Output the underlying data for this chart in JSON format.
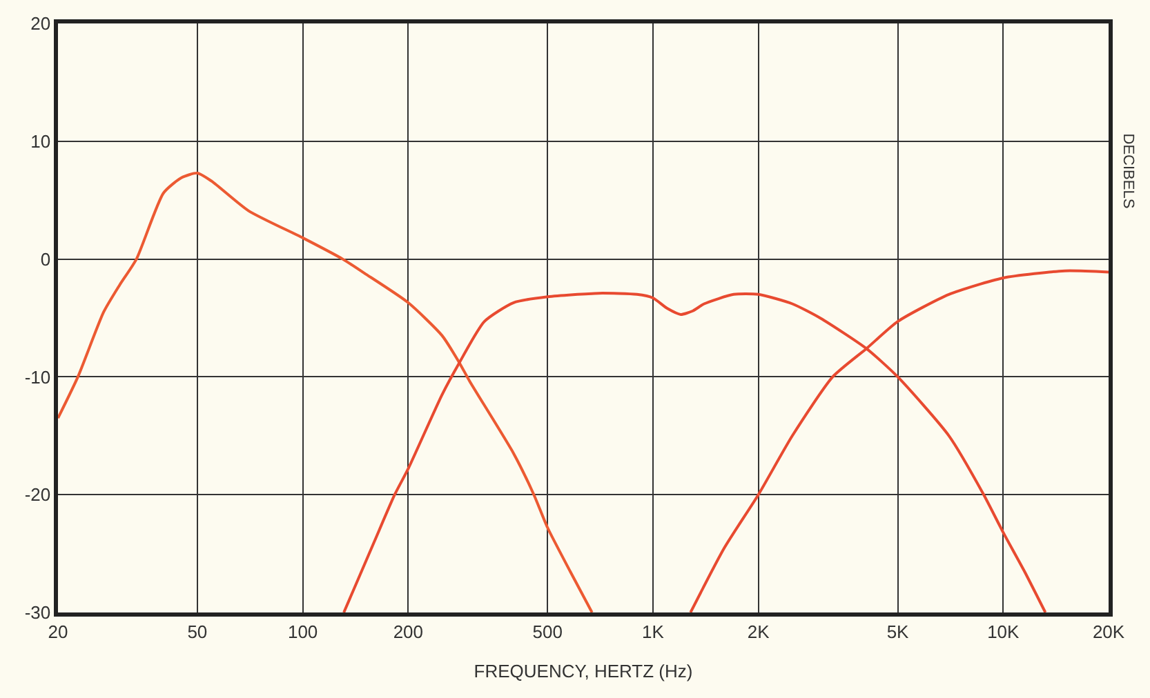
{
  "chart_data": {
    "type": "line",
    "xlabel": "FREQUENCY, HERTZ (Hz)",
    "ylabel": "DECIBELS",
    "log": "x",
    "grid": true,
    "xlim": [
      20,
      20000
    ],
    "ylim": [
      -30,
      20
    ],
    "xticks": [
      20,
      50,
      100,
      200,
      500,
      {
        "value": 1000,
        "label": "1K"
      },
      {
        "value": 2000,
        "label": "2K"
      },
      {
        "value": 5000,
        "label": "5K"
      },
      {
        "value": 10000,
        "label": "10K"
      },
      {
        "value": 20000,
        "label": "20K"
      }
    ],
    "yticks": [
      -30,
      -20,
      -10,
      0,
      10,
      20
    ],
    "series": [
      {
        "color": "#ec5a32",
        "x": [
          20,
          22.8,
          27,
          30,
          33.5,
          40,
          45,
          50,
          55,
          70,
          100,
          130,
          150,
          200,
          250,
          280,
          300,
          400,
          457,
          500,
          580,
          670
        ],
        "values": [
          -13.5,
          -10,
          -4.5,
          -2.2,
          0,
          5.6,
          6.9,
          7.3,
          6.6,
          4.1,
          1.8,
          0,
          -1.2,
          -3.7,
          -6.5,
          -8.8,
          -10.4,
          -16.5,
          -20,
          -22.8,
          -26.5,
          -30
        ]
      },
      {
        "color": "#e84a30",
        "x": [
          131,
          160,
          183,
          200,
          250,
          280,
          330,
          400,
          500,
          700,
          900,
          1000,
          1100,
          1200,
          1300,
          1400,
          1700,
          2000,
          2500,
          3000,
          4070,
          5000,
          7000,
          8800,
          10000,
          11500,
          13200
        ],
        "values": [
          -30,
          -24,
          -20,
          -17.8,
          -11.5,
          -8.8,
          -5.3,
          -3.7,
          -3.2,
          -2.9,
          -3,
          -3.3,
          -4.2,
          -4.7,
          -4.4,
          -3.8,
          -3,
          -3,
          -3.8,
          -5,
          -7.6,
          -10,
          -15,
          -20,
          -23.2,
          -26.5,
          -30
        ]
      },
      {
        "color": "#e84a30",
        "x": [
          1280,
          1600,
          2000,
          2500,
          3260,
          4070,
          5000,
          7000,
          10000,
          15000,
          20000
        ],
        "values": [
          -30,
          -24.5,
          -20,
          -15,
          -10,
          -7.6,
          -5.3,
          -3,
          -1.6,
          -1,
          -1.1
        ]
      }
    ]
  }
}
